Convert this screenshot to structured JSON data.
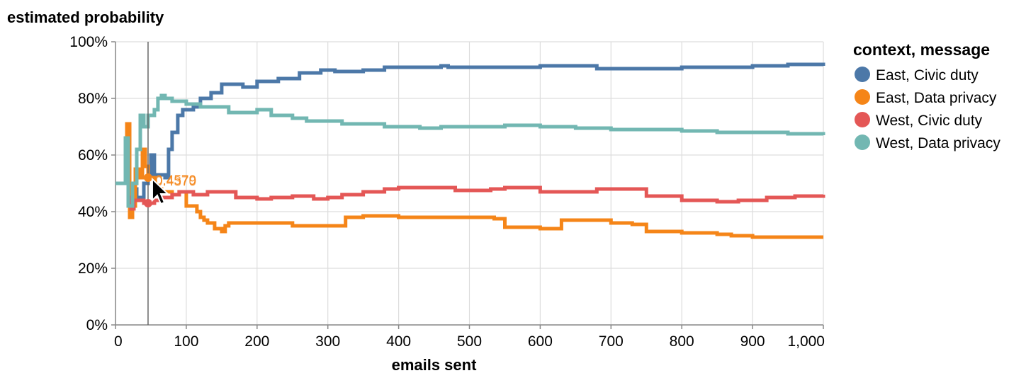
{
  "chart_data": {
    "type": "line",
    "ylabel": "estimated probability",
    "xlabel": "emails sent",
    "xlim": [
      0,
      1000
    ],
    "ylim": [
      0,
      1
    ],
    "x_ticks": [
      0,
      100,
      200,
      300,
      400,
      500,
      600,
      700,
      800,
      900,
      1000
    ],
    "x_tick_labels": [
      "0",
      "100",
      "200",
      "300",
      "400",
      "500",
      "600",
      "700",
      "800",
      "900",
      "1,000"
    ],
    "y_ticks": [
      0,
      0.2,
      0.4,
      0.6,
      0.8,
      1.0
    ],
    "y_tick_labels": [
      "0%",
      "20%",
      "40%",
      "60%",
      "80%",
      "100%"
    ],
    "grid": true,
    "legend": {
      "title": "context, message",
      "placement": "right"
    },
    "rule_x": 46,
    "tooltip_texts": [
      "0.4579",
      "0.4370"
    ],
    "series": [
      {
        "name": "East, Civic duty",
        "color": "#4c78a8",
        "points": [
          [
            0,
            0.5
          ],
          [
            10,
            0.5
          ],
          [
            14,
            0.58
          ],
          [
            18,
            0.42
          ],
          [
            22,
            0.48
          ],
          [
            30,
            0.45
          ],
          [
            40,
            0.5
          ],
          [
            46,
            0.52
          ],
          [
            50,
            0.6
          ],
          [
            55,
            0.53
          ],
          [
            70,
            0.52
          ],
          [
            75,
            0.62
          ],
          [
            80,
            0.68
          ],
          [
            88,
            0.74
          ],
          [
            95,
            0.76
          ],
          [
            100,
            0.76
          ],
          [
            110,
            0.77
          ],
          [
            120,
            0.8
          ],
          [
            135,
            0.82
          ],
          [
            150,
            0.85
          ],
          [
            170,
            0.85
          ],
          [
            180,
            0.84
          ],
          [
            200,
            0.86
          ],
          [
            230,
            0.87
          ],
          [
            260,
            0.89
          ],
          [
            290,
            0.9
          ],
          [
            310,
            0.895
          ],
          [
            350,
            0.9
          ],
          [
            380,
            0.91
          ],
          [
            400,
            0.91
          ],
          [
            430,
            0.91
          ],
          [
            460,
            0.915
          ],
          [
            470,
            0.91
          ],
          [
            500,
            0.91
          ],
          [
            560,
            0.91
          ],
          [
            600,
            0.915
          ],
          [
            640,
            0.915
          ],
          [
            680,
            0.905
          ],
          [
            700,
            0.905
          ],
          [
            750,
            0.905
          ],
          [
            800,
            0.91
          ],
          [
            850,
            0.91
          ],
          [
            900,
            0.915
          ],
          [
            950,
            0.92
          ],
          [
            1000,
            0.915
          ]
        ]
      },
      {
        "name": "East, Data privacy",
        "color": "#f58518",
        "points": [
          [
            0,
            0.5
          ],
          [
            10,
            0.5
          ],
          [
            16,
            0.71
          ],
          [
            20,
            0.38
          ],
          [
            24,
            0.42
          ],
          [
            28,
            0.55
          ],
          [
            34,
            0.52
          ],
          [
            38,
            0.62
          ],
          [
            42,
            0.56
          ],
          [
            46,
            0.52
          ],
          [
            55,
            0.48
          ],
          [
            65,
            0.47
          ],
          [
            80,
            0.46
          ],
          [
            90,
            0.47
          ],
          [
            100,
            0.42
          ],
          [
            110,
            0.42
          ],
          [
            115,
            0.4
          ],
          [
            120,
            0.38
          ],
          [
            125,
            0.37
          ],
          [
            130,
            0.36
          ],
          [
            140,
            0.34
          ],
          [
            150,
            0.33
          ],
          [
            155,
            0.35
          ],
          [
            160,
            0.36
          ],
          [
            200,
            0.36
          ],
          [
            250,
            0.35
          ],
          [
            300,
            0.35
          ],
          [
            325,
            0.38
          ],
          [
            350,
            0.385
          ],
          [
            400,
            0.38
          ],
          [
            450,
            0.38
          ],
          [
            500,
            0.38
          ],
          [
            535,
            0.375
          ],
          [
            550,
            0.345
          ],
          [
            600,
            0.34
          ],
          [
            630,
            0.37
          ],
          [
            700,
            0.36
          ],
          [
            730,
            0.355
          ],
          [
            750,
            0.33
          ],
          [
            800,
            0.325
          ],
          [
            850,
            0.32
          ],
          [
            870,
            0.315
          ],
          [
            900,
            0.31
          ],
          [
            1000,
            0.31
          ]
        ]
      },
      {
        "name": "West, Civic duty",
        "color": "#e45756",
        "points": [
          [
            0,
            0.5
          ],
          [
            10,
            0.5
          ],
          [
            14,
            0.57
          ],
          [
            18,
            0.45
          ],
          [
            22,
            0.41
          ],
          [
            26,
            0.44
          ],
          [
            30,
            0.44
          ],
          [
            40,
            0.43
          ],
          [
            46,
            0.43
          ],
          [
            55,
            0.44
          ],
          [
            65,
            0.45
          ],
          [
            80,
            0.46
          ],
          [
            90,
            0.47
          ],
          [
            110,
            0.46
          ],
          [
            130,
            0.47
          ],
          [
            150,
            0.47
          ],
          [
            170,
            0.45
          ],
          [
            200,
            0.445
          ],
          [
            220,
            0.45
          ],
          [
            250,
            0.455
          ],
          [
            280,
            0.445
          ],
          [
            300,
            0.45
          ],
          [
            320,
            0.46
          ],
          [
            350,
            0.47
          ],
          [
            380,
            0.48
          ],
          [
            400,
            0.485
          ],
          [
            450,
            0.485
          ],
          [
            480,
            0.475
          ],
          [
            500,
            0.475
          ],
          [
            530,
            0.48
          ],
          [
            550,
            0.485
          ],
          [
            600,
            0.47
          ],
          [
            650,
            0.47
          ],
          [
            680,
            0.48
          ],
          [
            700,
            0.48
          ],
          [
            750,
            0.455
          ],
          [
            800,
            0.44
          ],
          [
            850,
            0.435
          ],
          [
            880,
            0.44
          ],
          [
            920,
            0.45
          ],
          [
            960,
            0.455
          ],
          [
            1000,
            0.46
          ]
        ]
      },
      {
        "name": "West, Data privacy",
        "color": "#72b7b2",
        "points": [
          [
            0,
            0.5
          ],
          [
            10,
            0.5
          ],
          [
            14,
            0.66
          ],
          [
            18,
            0.42
          ],
          [
            24,
            0.5
          ],
          [
            30,
            0.62
          ],
          [
            35,
            0.74
          ],
          [
            40,
            0.7
          ],
          [
            46,
            0.74
          ],
          [
            55,
            0.76
          ],
          [
            60,
            0.8
          ],
          [
            65,
            0.81
          ],
          [
            70,
            0.8
          ],
          [
            80,
            0.79
          ],
          [
            100,
            0.78
          ],
          [
            120,
            0.77
          ],
          [
            140,
            0.77
          ],
          [
            160,
            0.75
          ],
          [
            180,
            0.75
          ],
          [
            200,
            0.76
          ],
          [
            220,
            0.74
          ],
          [
            250,
            0.73
          ],
          [
            270,
            0.72
          ],
          [
            300,
            0.72
          ],
          [
            320,
            0.71
          ],
          [
            350,
            0.71
          ],
          [
            380,
            0.7
          ],
          [
            400,
            0.7
          ],
          [
            430,
            0.695
          ],
          [
            460,
            0.7
          ],
          [
            500,
            0.7
          ],
          [
            550,
            0.705
          ],
          [
            600,
            0.7
          ],
          [
            650,
            0.695
          ],
          [
            700,
            0.69
          ],
          [
            750,
            0.69
          ],
          [
            800,
            0.685
          ],
          [
            850,
            0.68
          ],
          [
            900,
            0.68
          ],
          [
            950,
            0.675
          ],
          [
            1000,
            0.67
          ]
        ]
      }
    ]
  }
}
